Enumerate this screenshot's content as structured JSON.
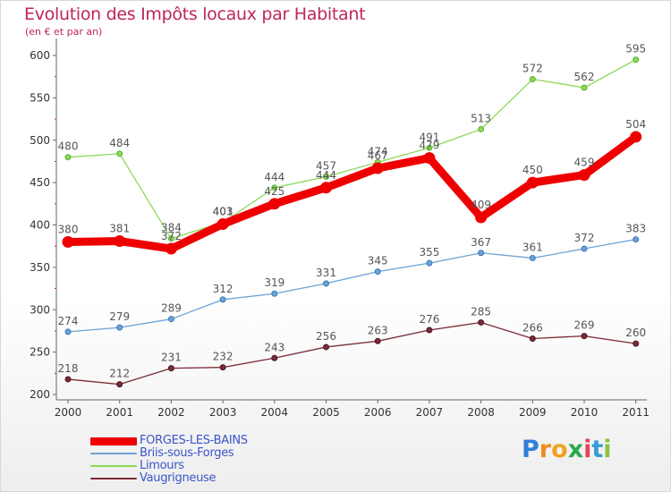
{
  "chart_data": {
    "type": "line",
    "title": "Evolution des Impôts locaux par Habitant",
    "subtitle": "(en € et par an)",
    "xlabel": "",
    "ylabel": "",
    "ylim": [
      200,
      600
    ],
    "yticks": [
      200,
      250,
      300,
      350,
      400,
      450,
      500,
      550,
      600
    ],
    "categories": [
      "2000",
      "2001",
      "2002",
      "2003",
      "2004",
      "2005",
      "2006",
      "2007",
      "2008",
      "2009",
      "2010",
      "2011"
    ],
    "grid": false,
    "legend_position": "bottom-left",
    "series": [
      {
        "name": "FORGES-LES-BAINS",
        "color": "#ee0000",
        "values": [
          380,
          381,
          372,
          401,
          425,
          444,
          467,
          479,
          409,
          450,
          459,
          504
        ]
      },
      {
        "name": "Briis-sous-Forges",
        "color": "#6aa3d6",
        "values": [
          274,
          279,
          289,
          312,
          319,
          331,
          345,
          355,
          367,
          361,
          372,
          383
        ]
      },
      {
        "name": "Limours",
        "color": "#8cd957",
        "values": [
          480,
          484,
          384,
          403,
          444,
          457,
          474,
          491,
          513,
          572,
          562,
          595
        ]
      },
      {
        "name": "Vaugrigneuse",
        "color": "#7b2b37",
        "values": [
          218,
          212,
          231,
          232,
          243,
          256,
          263,
          276,
          285,
          266,
          269,
          260
        ]
      }
    ]
  },
  "brand": {
    "letters": [
      "P",
      "r",
      "o",
      "x",
      "i",
      "t",
      "i"
    ],
    "colors": [
      "#2f7fd8",
      "#f08a1c",
      "#f0a21c",
      "#2aa84a",
      "#e8425a",
      "#3a9bd9",
      "#8bc43c"
    ]
  }
}
